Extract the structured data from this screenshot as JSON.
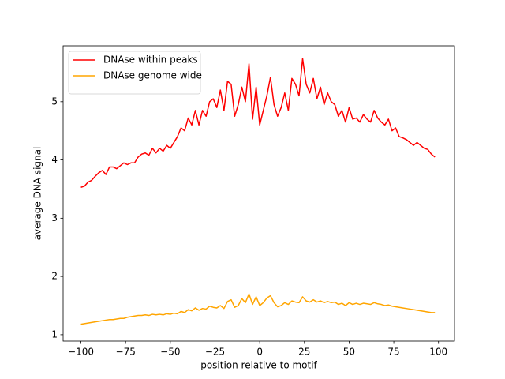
{
  "chart_data": {
    "type": "line",
    "xlabel": "position relative to motif",
    "ylabel": "average DNA signal",
    "x": [
      -100,
      -98,
      -96,
      -94,
      -92,
      -90,
      -88,
      -86,
      -84,
      -82,
      -80,
      -78,
      -76,
      -74,
      -72,
      -70,
      -68,
      -66,
      -64,
      -62,
      -60,
      -58,
      -56,
      -54,
      -52,
      -50,
      -48,
      -46,
      -44,
      -42,
      -40,
      -38,
      -36,
      -34,
      -32,
      -30,
      -28,
      -26,
      -24,
      -22,
      -20,
      -18,
      -16,
      -14,
      -12,
      -10,
      -8,
      -6,
      -4,
      -2,
      0,
      2,
      4,
      6,
      8,
      10,
      12,
      14,
      16,
      18,
      20,
      22,
      24,
      26,
      28,
      30,
      32,
      34,
      36,
      38,
      40,
      42,
      44,
      46,
      48,
      50,
      52,
      54,
      56,
      58,
      60,
      62,
      64,
      66,
      68,
      70,
      72,
      74,
      76,
      78,
      80,
      82,
      84,
      86,
      88,
      90,
      92,
      94,
      96,
      98
    ],
    "series": [
      {
        "name": "DNAse within peaks",
        "color": "#ff0000",
        "values": [
          3.53,
          3.55,
          3.62,
          3.65,
          3.72,
          3.78,
          3.82,
          3.75,
          3.88,
          3.88,
          3.85,
          3.9,
          3.95,
          3.92,
          3.95,
          3.95,
          4.05,
          4.1,
          4.12,
          4.08,
          4.2,
          4.12,
          4.2,
          4.15,
          4.25,
          4.2,
          4.3,
          4.4,
          4.55,
          4.5,
          4.72,
          4.6,
          4.85,
          4.6,
          4.85,
          4.75,
          5.0,
          5.05,
          4.9,
          5.2,
          4.85,
          5.35,
          5.3,
          4.75,
          4.95,
          5.25,
          5.0,
          5.65,
          4.7,
          5.25,
          4.6,
          4.85,
          5.1,
          5.42,
          4.95,
          4.75,
          4.9,
          5.15,
          4.85,
          5.4,
          5.3,
          5.1,
          5.74,
          5.3,
          5.15,
          5.4,
          5.05,
          5.25,
          4.95,
          5.15,
          5.0,
          4.95,
          4.75,
          4.85,
          4.65,
          4.9,
          4.7,
          4.72,
          4.65,
          4.78,
          4.7,
          4.65,
          4.85,
          4.72,
          4.65,
          4.6,
          4.7,
          4.5,
          4.55,
          4.4,
          4.38,
          4.35,
          4.3,
          4.25,
          4.3,
          4.25,
          4.2,
          4.18,
          4.1,
          4.05
        ]
      },
      {
        "name": "DNAse genome wide",
        "color": "#ffa500",
        "values": [
          1.18,
          1.19,
          1.2,
          1.21,
          1.22,
          1.23,
          1.24,
          1.25,
          1.26,
          1.26,
          1.27,
          1.28,
          1.28,
          1.3,
          1.31,
          1.32,
          1.33,
          1.33,
          1.34,
          1.33,
          1.35,
          1.34,
          1.35,
          1.34,
          1.36,
          1.35,
          1.37,
          1.36,
          1.4,
          1.38,
          1.43,
          1.41,
          1.46,
          1.42,
          1.45,
          1.44,
          1.49,
          1.47,
          1.46,
          1.5,
          1.45,
          1.57,
          1.6,
          1.47,
          1.5,
          1.62,
          1.55,
          1.7,
          1.52,
          1.65,
          1.5,
          1.55,
          1.63,
          1.67,
          1.55,
          1.48,
          1.5,
          1.55,
          1.52,
          1.58,
          1.56,
          1.55,
          1.65,
          1.58,
          1.56,
          1.6,
          1.56,
          1.58,
          1.55,
          1.57,
          1.55,
          1.56,
          1.52,
          1.54,
          1.5,
          1.55,
          1.52,
          1.54,
          1.52,
          1.54,
          1.53,
          1.52,
          1.55,
          1.53,
          1.52,
          1.5,
          1.51,
          1.49,
          1.48,
          1.47,
          1.46,
          1.45,
          1.44,
          1.43,
          1.42,
          1.41,
          1.4,
          1.39,
          1.38,
          1.38
        ]
      }
    ],
    "xlim": [
      -109.95,
      108.95
    ],
    "ylim": [
      0.89,
      5.96
    ],
    "xticks": [
      {
        "value": -100,
        "label": "−100"
      },
      {
        "value": -75,
        "label": "−75"
      },
      {
        "value": -50,
        "label": "−50"
      },
      {
        "value": -25,
        "label": "−25"
      },
      0,
      25,
      50,
      75,
      100
    ],
    "yticks": [
      1,
      2,
      3,
      4,
      5
    ],
    "legend": "upper left"
  }
}
